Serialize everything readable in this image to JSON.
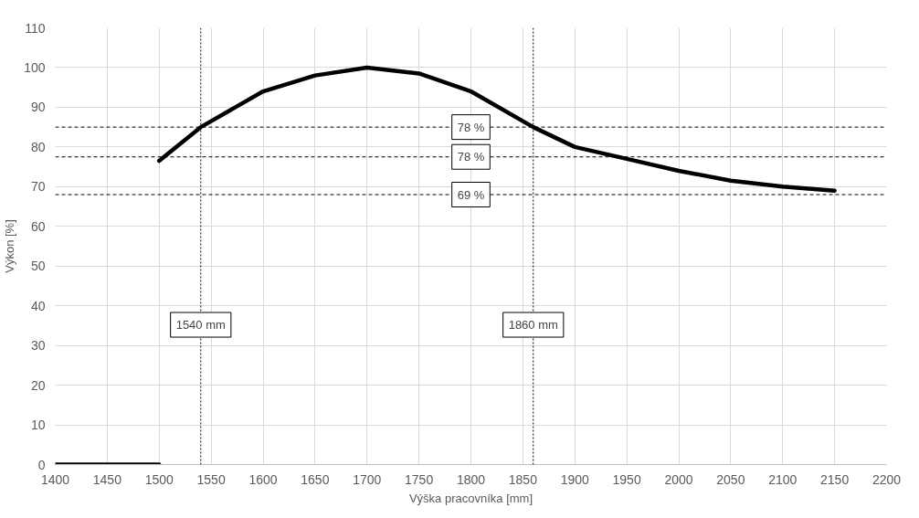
{
  "chart_data": {
    "type": "line",
    "xlabel": "Výška pracovníka [mm]",
    "ylabel": "Výkon [%]",
    "xlim": [
      1400,
      2200
    ],
    "xticks": [
      1400,
      1450,
      1500,
      1550,
      1600,
      1650,
      1700,
      1750,
      1800,
      1850,
      1900,
      1950,
      2000,
      2050,
      2100,
      2150,
      2200
    ],
    "ylim": [
      0,
      110
    ],
    "yticks": [
      0,
      10,
      20,
      30,
      40,
      50,
      60,
      70,
      80,
      90,
      100,
      110
    ],
    "grid": true,
    "marker": "none",
    "line_style": "solid",
    "annotations": [
      {
        "text": "78 %",
        "y": 85
      },
      {
        "text": "78 %",
        "y": 77.5
      },
      {
        "text": "69 %",
        "y": 68
      }
    ],
    "series": [
      {
        "color": "#000000",
        "x": [
          1400,
          1500
        ],
        "values": [
          0,
          0
        ]
      },
      {
        "color": "#000000",
        "x": [
          1500,
          1540,
          1600,
          1650,
          1700,
          1750,
          1800,
          1860,
          1900,
          1950,
          2000,
          2050,
          2100,
          2150
        ],
        "values": [
          76.5,
          85,
          94,
          98,
          100,
          98.5,
          94,
          85,
          80,
          77,
          74,
          71.5,
          70,
          69
        ]
      }
    ],
    "ref_lines": [
      {
        "axis": "y",
        "value": 85,
        "color": "#000000",
        "line_style": "dashed"
      },
      {
        "axis": "y",
        "value": 77.5,
        "color": "#000000",
        "line_style": "dashed"
      },
      {
        "axis": "y",
        "value": 68,
        "color": "#000000",
        "line_style": "dashed"
      },
      {
        "axis": "x",
        "value": 1540,
        "label": "1540 mm",
        "color": "#000000",
        "line_style": "dotted"
      },
      {
        "axis": "x",
        "value": 1860,
        "label": "1860 mm",
        "color": "#000000",
        "line_style": "dotted"
      }
    ]
  }
}
